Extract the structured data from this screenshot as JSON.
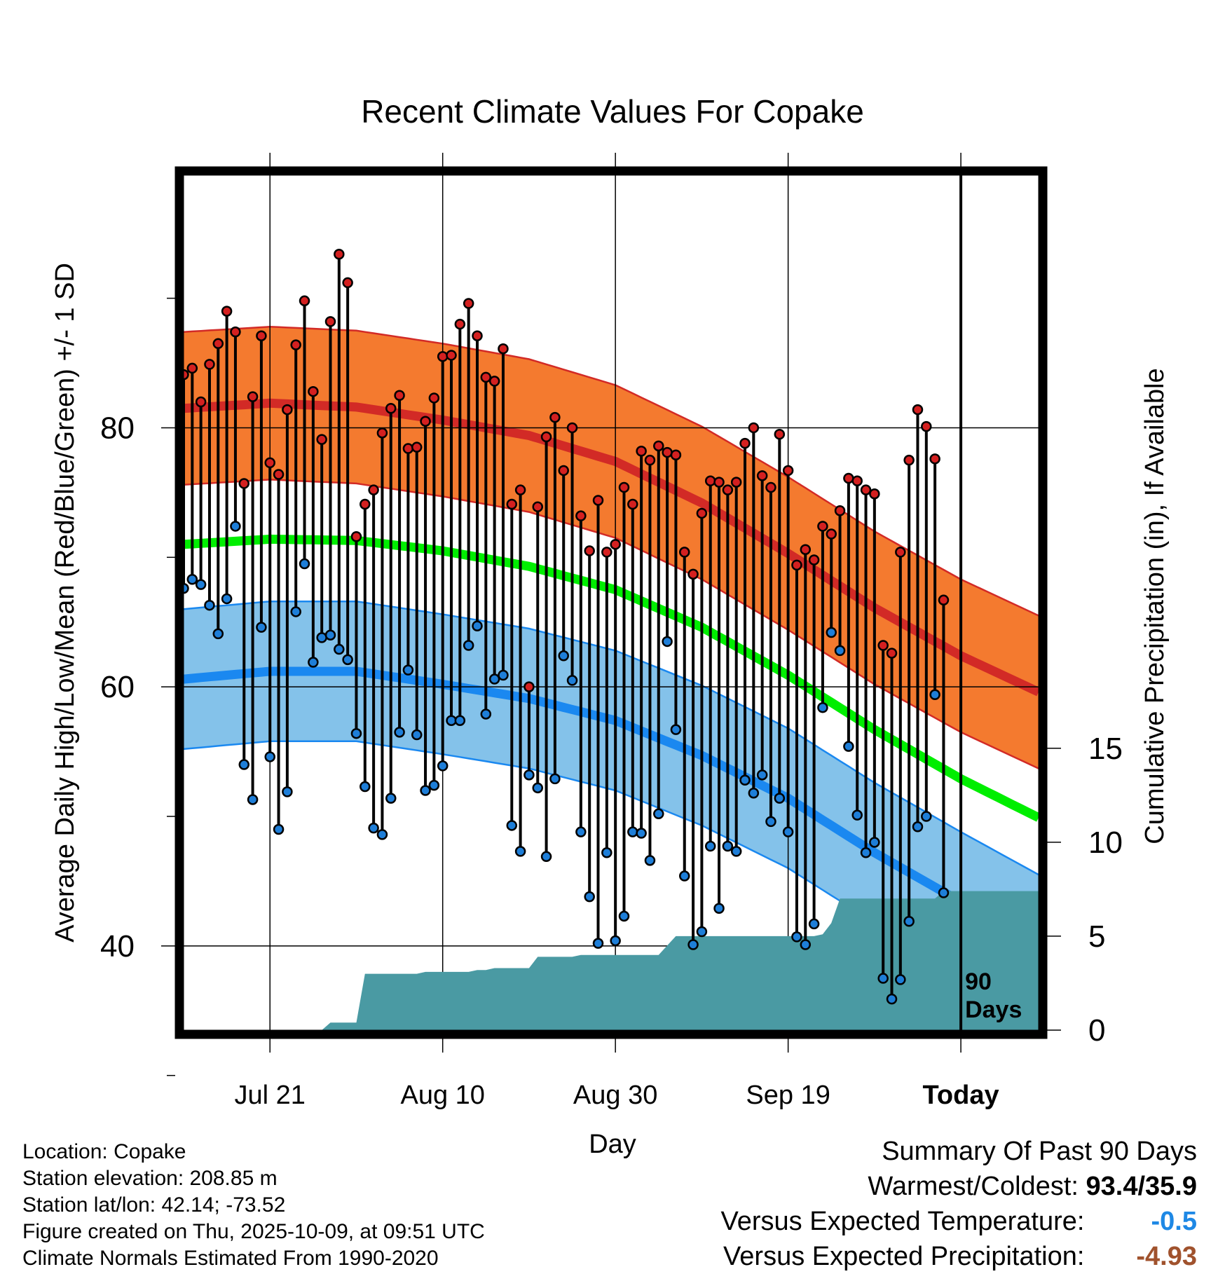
{
  "chart_data": {
    "type": "line",
    "title": "Recent Climate Values For Copake",
    "xlabel": "Day",
    "ylabel": "Average Daily High/Low/Mean (Red/Blue/Green) +/- 1 SD",
    "y2label": "Cumulative Precipitation (in), If Available",
    "x_days_range": [
      -90,
      9
    ],
    "ylim": [
      33.5,
      99.5
    ],
    "y2lim": [
      0,
      45.5
    ],
    "yticks": [
      40,
      60,
      80
    ],
    "yminorticks": [
      30,
      50,
      70,
      90
    ],
    "y2ticks": [
      0,
      5,
      10,
      15
    ],
    "xticks": [
      {
        "day": -80,
        "label": "Jul 21"
      },
      {
        "day": -60,
        "label": "Aug 10"
      },
      {
        "day": -40,
        "label": "Aug 30"
      },
      {
        "day": -20,
        "label": "Sep 19"
      },
      {
        "day": 0,
        "label": "Today"
      }
    ],
    "today_label": [
      "90",
      "Days"
    ],
    "normals": {
      "days": [
        -90,
        -80,
        -70,
        -60,
        -50,
        -40,
        -30,
        -20,
        -10,
        0,
        9
      ],
      "high_mean": [
        81.5,
        81.9,
        81.6,
        80.6,
        79.4,
        77.4,
        74.2,
        70.3,
        66.1,
        62.4,
        59.6
      ],
      "high_sd": 5.9,
      "low_mean": [
        60.6,
        61.2,
        61.2,
        60.2,
        59.1,
        57.4,
        54.7,
        51.4,
        47.2,
        43.4,
        40.1
      ],
      "low_sd": 5.4,
      "mean": [
        71.0,
        71.4,
        71.3,
        70.5,
        69.3,
        67.5,
        64.6,
        60.9,
        56.7,
        52.9,
        49.9
      ]
    },
    "series": [
      {
        "name": "High",
        "values": [
          84.1,
          84.6,
          82.0,
          84.9,
          86.5,
          89.0,
          87.4,
          75.7,
          82.4,
          87.1,
          77.3,
          76.4,
          81.4,
          86.4,
          89.8,
          82.8,
          79.1,
          88.2,
          93.4,
          91.2,
          71.6,
          74.1,
          75.2,
          79.6,
          81.5,
          82.5,
          78.4,
          78.5,
          80.5,
          82.3,
          85.5,
          85.6,
          88.0,
          89.6,
          87.1,
          83.9,
          83.6,
          86.1,
          74.1,
          75.2,
          60.0,
          73.9,
          79.3,
          80.8,
          76.7,
          80.0,
          73.2,
          70.5,
          74.4,
          70.4,
          71.0,
          75.4,
          74.1,
          78.2,
          77.5,
          78.6,
          78.1,
          77.9,
          70.4,
          68.7,
          73.4,
          75.9,
          75.8,
          75.2,
          75.8,
          78.8,
          80.0,
          76.3,
          75.4,
          79.5,
          76.7,
          69.4,
          70.6,
          69.8,
          72.4,
          71.8,
          73.6,
          76.1,
          75.9,
          75.2,
          74.9,
          63.2,
          62.6,
          70.4,
          77.5,
          81.4,
          80.1,
          77.6,
          66.7
        ]
      },
      {
        "name": "Low",
        "values": [
          67.6,
          68.3,
          67.9,
          66.3,
          64.1,
          66.8,
          72.4,
          54.0,
          51.3,
          64.6,
          54.6,
          49.0,
          51.9,
          65.8,
          69.5,
          61.9,
          63.8,
          64.0,
          62.9,
          62.1,
          56.4,
          52.3,
          49.1,
          48.6,
          51.4,
          56.5,
          61.3,
          56.3,
          52.0,
          52.4,
          53.9,
          57.4,
          57.4,
          63.2,
          64.7,
          57.9,
          60.6,
          60.9,
          49.3,
          47.3,
          53.2,
          52.2,
          46.9,
          52.9,
          62.4,
          60.5,
          48.8,
          43.8,
          40.2,
          47.2,
          40.4,
          42.3,
          48.8,
          48.7,
          46.6,
          50.2,
          63.5,
          56.7,
          45.4,
          40.1,
          41.1,
          47.7,
          42.9,
          47.7,
          47.3,
          52.8,
          51.8,
          53.2,
          49.6,
          51.4,
          48.8,
          40.7,
          40.1,
          41.7,
          58.4,
          64.2,
          62.8,
          55.4,
          50.1,
          47.2,
          48.0,
          37.5,
          35.9,
          37.4,
          41.9,
          49.2,
          50.0,
          59.4,
          44.1
        ]
      },
      {
        "name": "Cumulative Precipitation",
        "values": [
          0,
          0,
          0,
          0,
          0,
          0,
          0,
          0,
          0,
          0,
          0,
          0,
          0,
          0,
          0,
          0,
          0,
          0.4,
          0.4,
          0.4,
          0.4,
          3.0,
          3.0,
          3.0,
          3.0,
          3.0,
          3.0,
          3.0,
          3.1,
          3.1,
          3.1,
          3.1,
          3.1,
          3.1,
          3.2,
          3.2,
          3.3,
          3.3,
          3.3,
          3.3,
          3.3,
          3.9,
          3.9,
          3.9,
          3.9,
          3.9,
          4.0,
          4.0,
          4.0,
          4.0,
          4.0,
          4.0,
          4.0,
          4.0,
          4.0,
          4.0,
          4.5,
          5.0,
          5.0,
          5.0,
          5.0,
          5.0,
          5.0,
          5.0,
          5.0,
          5.0,
          5.0,
          5.0,
          5.0,
          5.0,
          5.0,
          5.0,
          5.0,
          5.0,
          5.1,
          5.7,
          7.0,
          7.0,
          7.0,
          7.0,
          7.0,
          7.0,
          7.0,
          7.0,
          7.0,
          7.0,
          7.0,
          7.0,
          7.4,
          7.4,
          7.4
        ]
      }
    ]
  },
  "info": {
    "location": "Location: Copake",
    "elevation": "Station elevation: 208.85 m",
    "latlon": "Station lat/lon: 42.14; -73.52",
    "created": "Figure created on Thu, 2025-10-09, at 09:51 UTC",
    "normals": "Climate Normals Estimated From 1990-2020"
  },
  "summary": {
    "title": "Summary Of Past 90 Days",
    "warm_cold_label": "Warmest/Coldest:",
    "warm_cold_value": "93.4/35.9",
    "temp_label": "Versus Expected Temperature:",
    "temp_value": "-0.5",
    "precip_label": "Versus Expected Precipitation:",
    "precip_value": "-4.93"
  },
  "colors": {
    "high_band": "#f47a2f",
    "high_line": "#d22a26",
    "low_band": "#84c2ea",
    "low_line": "#1a88f0",
    "mean_line": "#00ee00",
    "precip_fill": "#4a9aa3",
    "high_dot": "#d42020",
    "low_dot": "#1e7ed8",
    "temp_value": "#1e88e5",
    "precip_value": "#a0522d"
  }
}
